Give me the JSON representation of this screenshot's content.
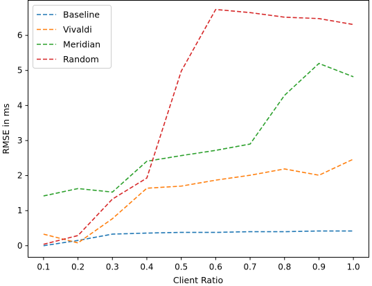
{
  "chart_data": {
    "type": "line",
    "xlabel": "Client Ratio",
    "ylabel": "RMSE in ms",
    "x": [
      0.1,
      0.2,
      0.3,
      0.4,
      0.5,
      0.6,
      0.7,
      0.8,
      0.9,
      1.0
    ],
    "x_tick_labels": [
      "0.1",
      "0.2",
      "0.3",
      "0.4",
      "0.5",
      "0.6",
      "0.7",
      "0.8",
      "0.9",
      "1.0"
    ],
    "y_ticks": [
      0,
      1,
      2,
      3,
      4,
      5,
      6
    ],
    "y_tick_labels": [
      "0",
      "1",
      "2",
      "3",
      "4",
      "5",
      "6"
    ],
    "xlim": [
      0.055,
      1.045
    ],
    "ylim": [
      -0.33,
      7.0
    ],
    "grid": false,
    "legend_position": "top-left",
    "series": [
      {
        "name": "Baseline",
        "color": "#1f77b4",
        "values": [
          0.0,
          0.15,
          0.33,
          0.36,
          0.38,
          0.38,
          0.4,
          0.4,
          0.42,
          0.42
        ]
      },
      {
        "name": "Vivaldi",
        "color": "#ff7f0e",
        "values": [
          0.33,
          0.08,
          0.77,
          1.64,
          1.7,
          1.87,
          2.01,
          2.19,
          2.01,
          2.47
        ]
      },
      {
        "name": "Meridian",
        "color": "#2ca02c",
        "values": [
          1.42,
          1.63,
          1.53,
          2.41,
          2.57,
          2.72,
          2.9,
          4.29,
          5.2,
          4.82
        ]
      },
      {
        "name": "Random",
        "color": "#d62728",
        "values": [
          0.04,
          0.29,
          1.33,
          1.93,
          4.98,
          6.74,
          6.65,
          6.52,
          6.48,
          6.31
        ]
      }
    ]
  }
}
